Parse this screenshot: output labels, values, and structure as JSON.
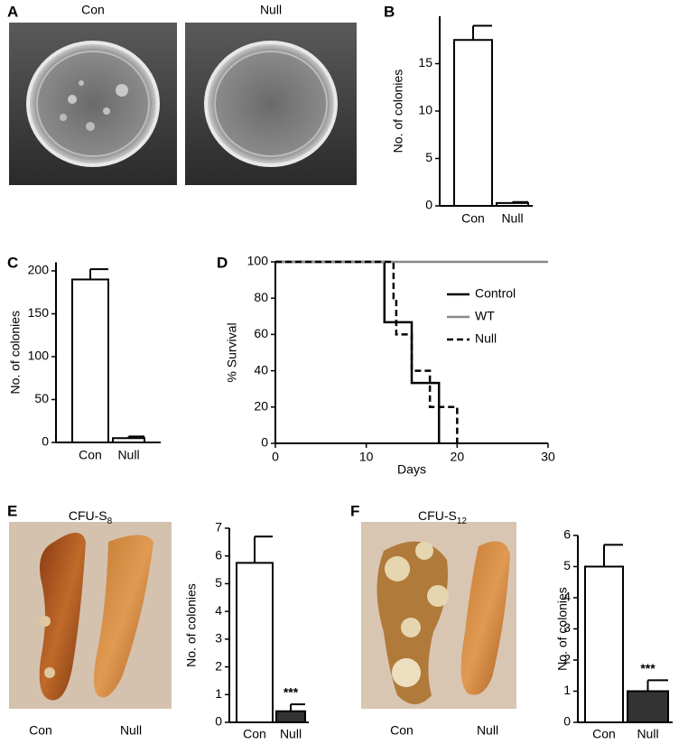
{
  "photo_panels": [
    {
      "panel": "A",
      "labels": [
        "Con",
        "Null"
      ]
    },
    {
      "panel": "E",
      "title": "CFU-S",
      "title_subscript": "8",
      "labels": [
        "Con",
        "Null"
      ]
    },
    {
      "panel": "F",
      "title": "CFU-S",
      "title_subscript": "12",
      "labels": [
        "Con",
        "Null"
      ]
    }
  ],
  "chart_data": [
    {
      "type": "bar",
      "panel": "B",
      "ylabel": "No. of colonies",
      "categories": [
        "Con",
        "Null"
      ],
      "values": [
        17.5,
        0.3
      ],
      "errors": [
        1.5,
        0.1
      ],
      "colors": [
        "#ffffff",
        "#ffffff"
      ],
      "ylim": [
        0,
        20
      ],
      "yticks": [
        0,
        5,
        10,
        15
      ]
    },
    {
      "type": "bar",
      "panel": "C",
      "ylabel": "No. of colonies",
      "categories": [
        "Con",
        "Null"
      ],
      "values": [
        190,
        5
      ],
      "errors": [
        12,
        2
      ],
      "colors": [
        "#ffffff",
        "#ffffff"
      ],
      "ylim": [
        0,
        210
      ],
      "yticks": [
        0,
        50,
        100,
        150,
        200
      ]
    },
    {
      "type": "step",
      "panel": "D",
      "xlabel": "Days",
      "ylabel": "% Survival",
      "xlim": [
        0,
        30
      ],
      "ylim": [
        0,
        100
      ],
      "xticks": [
        0,
        10,
        20,
        30
      ],
      "yticks": [
        0,
        20,
        40,
        60,
        80,
        100
      ],
      "series": [
        {
          "name": "Control",
          "color": "#000000",
          "dash": false,
          "x": [
            0,
            12,
            15,
            18
          ],
          "values": [
            100,
            66.7,
            33.3,
            0
          ]
        },
        {
          "name": "WT",
          "color": "#888888",
          "dash": false,
          "x": [
            0,
            30
          ],
          "values": [
            100,
            100
          ]
        },
        {
          "name": "Null",
          "color": "#000000",
          "dash": true,
          "x": [
            0,
            13,
            13.3,
            15,
            17,
            20
          ],
          "values": [
            100,
            80,
            60,
            40,
            20,
            0
          ]
        }
      ]
    },
    {
      "type": "bar",
      "ylabel": "No. of colonies",
      "categories": [
        "Con",
        "Null"
      ],
      "values": [
        5.75,
        0.4
      ],
      "errors": [
        0.95,
        0.25
      ],
      "colors": [
        "#ffffff",
        "#333333"
      ],
      "annotation": "***",
      "ylim": [
        0,
        7
      ],
      "yticks": [
        0,
        1,
        2,
        3,
        4,
        5,
        6,
        7
      ]
    },
    {
      "type": "bar",
      "ylabel": "No. of colonies",
      "categories": [
        "Con",
        "Null"
      ],
      "values": [
        5.0,
        1.0
      ],
      "errors": [
        0.7,
        0.35
      ],
      "colors": [
        "#ffffff",
        "#333333"
      ],
      "annotation": "***",
      "ylim": [
        0,
        6
      ],
      "yticks": [
        0,
        1,
        2,
        3,
        4,
        5,
        6
      ]
    }
  ]
}
